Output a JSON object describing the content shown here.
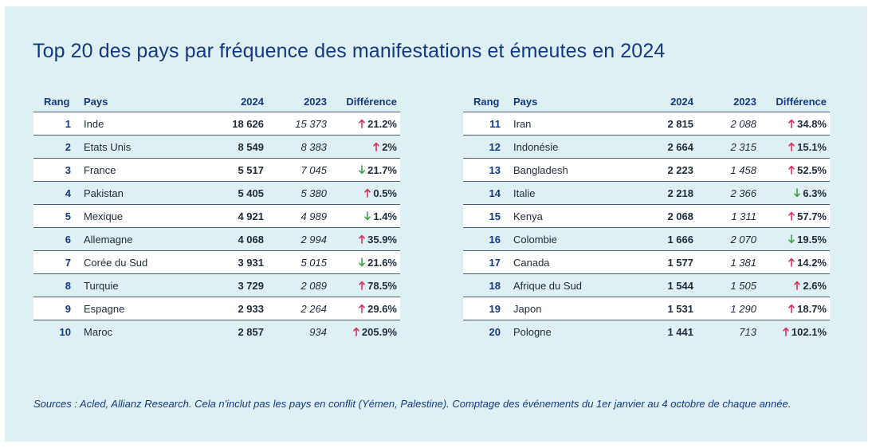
{
  "title": "Top 20 des pays par fréquence des manifestations et émeutes en 2024",
  "source": "Sources : Acled, Allianz Research. Cela n'inclut pas les pays en conflit (Yémen, Palestine). Comptage des événements du 1er janvier au 4 octobre de chaque année.",
  "colors": {
    "background": "#dff0f5",
    "title": "#123a82",
    "up": "#d9305e",
    "down": "#3fa048"
  },
  "icons": {
    "up": "arrow-up-icon",
    "down": "arrow-down-icon"
  },
  "chart_data": {
    "type": "table",
    "title": "Top 20 des pays par fréquence des manifestations et émeutes en 2024",
    "columns": [
      "Rang",
      "Pays",
      "2024",
      "2023",
      "Différence"
    ],
    "rows": [
      {
        "rank": "1",
        "country": "Inde",
        "y2024": "18 626",
        "y2023": "15 373",
        "diff": "21.2%",
        "dir": "up"
      },
      {
        "rank": "2",
        "country": "Etats Unis",
        "y2024": "8 549",
        "y2023": "8 383",
        "diff": "2%",
        "dir": "up"
      },
      {
        "rank": "3",
        "country": "France",
        "y2024": "5 517",
        "y2023": "7 045",
        "diff": "21.7%",
        "dir": "down"
      },
      {
        "rank": "4",
        "country": "Pakistan",
        "y2024": "5 405",
        "y2023": "5 380",
        "diff": "0.5%",
        "dir": "up"
      },
      {
        "rank": "5",
        "country": "Mexique",
        "y2024": "4 921",
        "y2023": "4 989",
        "diff": "1.4%",
        "dir": "down"
      },
      {
        "rank": "6",
        "country": "Allemagne",
        "y2024": "4 068",
        "y2023": "2 994",
        "diff": "35.9%",
        "dir": "up"
      },
      {
        "rank": "7",
        "country": "Corée du Sud",
        "y2024": "3 931",
        "y2023": "5 015",
        "diff": "21.6%",
        "dir": "down"
      },
      {
        "rank": "8",
        "country": "Turquie",
        "y2024": "3 729",
        "y2023": "2 089",
        "diff": "78.5%",
        "dir": "up"
      },
      {
        "rank": "9",
        "country": "Espagne",
        "y2024": "2 933",
        "y2023": "2 264",
        "diff": "29.6%",
        "dir": "up"
      },
      {
        "rank": "10",
        "country": "Maroc",
        "y2024": "2 857",
        "y2023": "934",
        "diff": "205.9%",
        "dir": "up"
      },
      {
        "rank": "11",
        "country": "Iran",
        "y2024": "2 815",
        "y2023": "2 088",
        "diff": "34.8%",
        "dir": "up"
      },
      {
        "rank": "12",
        "country": "Indonésie",
        "y2024": "2 664",
        "y2023": "2 315",
        "diff": "15.1%",
        "dir": "up"
      },
      {
        "rank": "13",
        "country": "Bangladesh",
        "y2024": "2 223",
        "y2023": "1 458",
        "diff": "52.5%",
        "dir": "up"
      },
      {
        "rank": "14",
        "country": "Italie",
        "y2024": "2 218",
        "y2023": "2 366",
        "diff": "6.3%",
        "dir": "down"
      },
      {
        "rank": "15",
        "country": "Kenya",
        "y2024": "2 068",
        "y2023": "1 311",
        "diff": "57.7%",
        "dir": "up"
      },
      {
        "rank": "16",
        "country": "Colombie",
        "y2024": "1 666",
        "y2023": "2 070",
        "diff": "19.5%",
        "dir": "down"
      },
      {
        "rank": "17",
        "country": "Canada",
        "y2024": "1 577",
        "y2023": "1 381",
        "diff": "14.2%",
        "dir": "up"
      },
      {
        "rank": "18",
        "country": "Afrique du Sud",
        "y2024": "1 544",
        "y2023": "1 505",
        "diff": "2.6%",
        "dir": "up"
      },
      {
        "rank": "19",
        "country": "Japon",
        "y2024": "1 531",
        "y2023": "1 290",
        "diff": "18.7%",
        "dir": "up"
      },
      {
        "rank": "20",
        "country": "Pologne",
        "y2024": "1 441",
        "y2023": "713",
        "diff": "102.1%",
        "dir": "up"
      }
    ]
  }
}
